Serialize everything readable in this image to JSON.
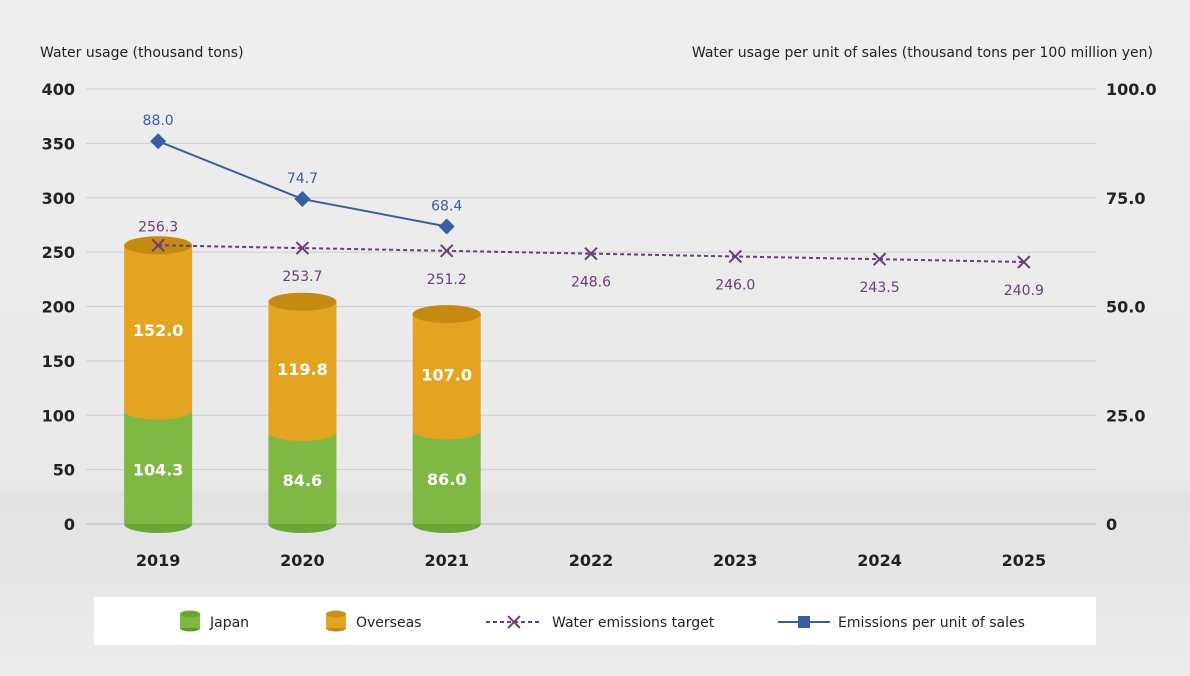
{
  "chart_data": {
    "type": "bar",
    "categories": [
      "2019",
      "2020",
      "2021",
      "2022",
      "2023",
      "2024",
      "2025"
    ],
    "y_left": {
      "label": "Water usage (thousand tons)",
      "ylim": [
        0,
        400
      ],
      "ticks": [
        "0",
        "50",
        "100",
        "150",
        "200",
        "250",
        "300",
        "350",
        "400"
      ]
    },
    "y_right": {
      "label": "Water usage per unit of sales (thousand tons per 100 million yen)",
      "ylim": [
        0,
        100
      ],
      "ticks": [
        "0",
        "25.0",
        "50.0",
        "75.0",
        "100.0"
      ]
    },
    "series": [
      {
        "name": "Japan",
        "kind": "stacked-bar",
        "axis": "left",
        "color": "#7fb842",
        "values": [
          104.3,
          84.6,
          86.0,
          null,
          null,
          null,
          null
        ],
        "labels": [
          "104.3",
          "84.6",
          "86.0",
          "",
          "",
          "",
          ""
        ]
      },
      {
        "name": "Overseas",
        "kind": "stacked-bar",
        "axis": "left",
        "color": "#e3a521",
        "values": [
          152.0,
          119.8,
          107.0,
          null,
          null,
          null,
          null
        ],
        "labels": [
          "152.0",
          "119.8",
          "107.0",
          "",
          "",
          "",
          ""
        ]
      },
      {
        "name": "Water emissions target",
        "kind": "dashed-line-x",
        "axis": "left",
        "color": "#6b3d7a",
        "values": [
          256.3,
          253.7,
          251.2,
          248.6,
          246.0,
          243.5,
          240.9
        ],
        "labels": [
          "256.3",
          "253.7",
          "251.2",
          "248.6",
          "246.0",
          "243.5",
          "240.9"
        ]
      },
      {
        "name": "Emissions per unit of sales",
        "kind": "line-diamond",
        "axis": "right",
        "color": "#3a5fa0",
        "values": [
          88.0,
          74.7,
          68.4,
          null,
          null,
          null,
          null
        ],
        "labels": [
          "88.0",
          "74.7",
          "68.4",
          "",
          "",
          "",
          ""
        ]
      }
    ],
    "grid": true,
    "legend_position": "bottom"
  }
}
